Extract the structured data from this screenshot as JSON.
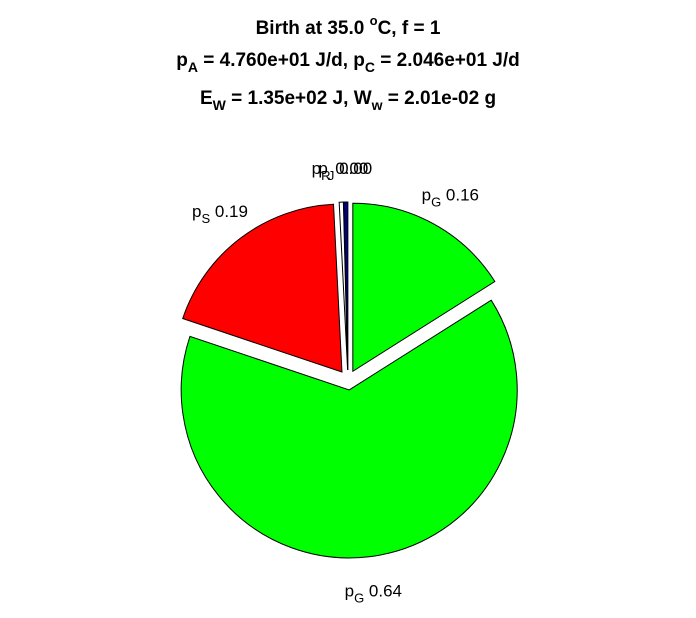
{
  "title": {
    "line1": {
      "pre": "Birth at 35.0 ",
      "sup": "o",
      "post": "C, f = 1"
    },
    "line2": {
      "a_base": "p",
      "a_sub": "A",
      "a_rest": " = 4.760e+01 J/d, ",
      "c_base": "p",
      "c_sub": "C",
      "c_rest": " = 2.046e+01 J/d"
    },
    "line3": {
      "e_base": "E",
      "e_sub": "W",
      "e_rest": " = 1.35e+02 J, ",
      "w_base": "W",
      "w_sub": "w",
      "w_rest": " = 2.01e-02 g"
    }
  },
  "chart_data": {
    "type": "pie",
    "start_angle_deg": 90,
    "direction": "clockwise",
    "slices": [
      {
        "base": "p",
        "sub": "G",
        "value_label": " 0.16",
        "value": 0.16,
        "color": "#00ff00",
        "explode": true
      },
      {
        "base": "p",
        "sub": "G",
        "value_label": " 0.64",
        "value": 0.64,
        "color": "#00ff00",
        "explode": true
      },
      {
        "base": "p",
        "sub": "S",
        "value_label": " 0.19",
        "value": 0.19,
        "color": "#ff0000",
        "explode": true
      },
      {
        "base": "p",
        "sub": "R",
        "value_label": " 0.00",
        "value": 0.004,
        "color": "#ffffff",
        "explode": true
      },
      {
        "base": "p",
        "sub": "J",
        "value_label": " 0.00",
        "value": 0.004,
        "color": "#000080",
        "explode": true
      }
    ]
  }
}
